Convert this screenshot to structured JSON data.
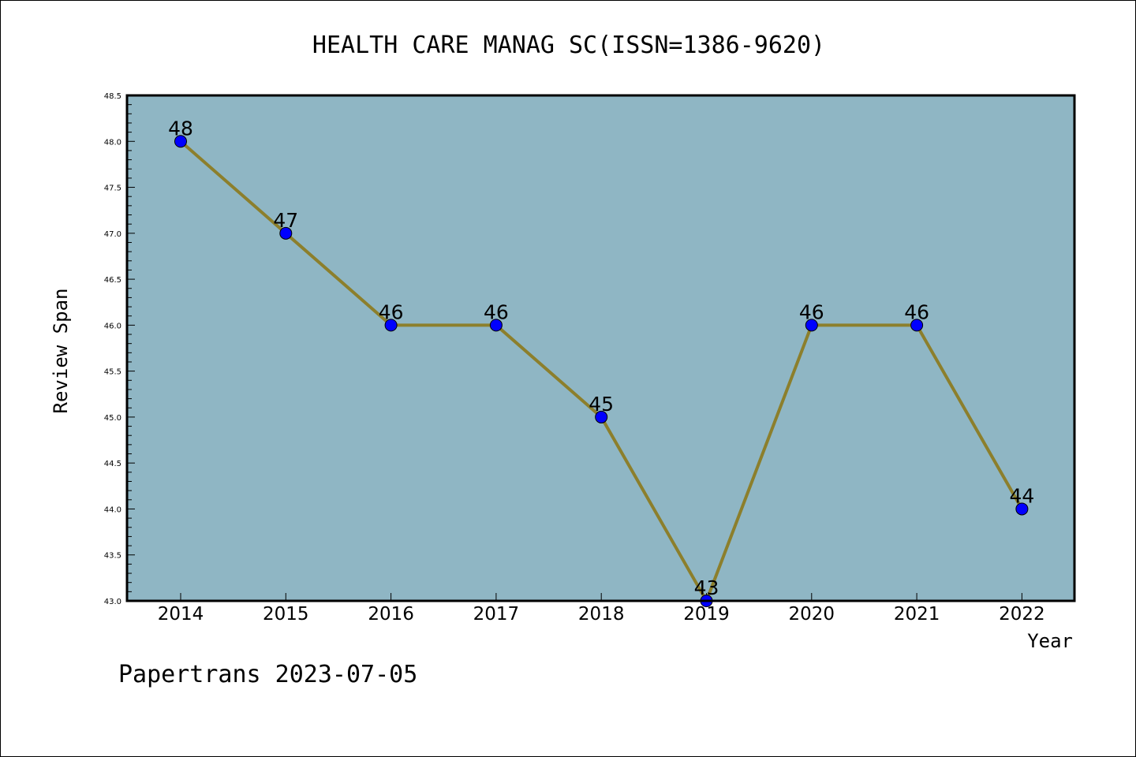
{
  "chart_data": {
    "type": "line",
    "title": "HEALTH CARE MANAG SC(ISSN=1386-9620)",
    "xlabel": "Year",
    "ylabel": "Review Span",
    "x": [
      "2014",
      "2015",
      "2016",
      "2017",
      "2018",
      "2019",
      "2020",
      "2021",
      "2022"
    ],
    "series": [
      {
        "values": [
          48,
          47,
          46,
          46,
          45,
          43,
          46,
          46,
          44
        ]
      }
    ],
    "data_labels": [
      "48",
      "47",
      "46",
      "46",
      "45",
      "43",
      "46",
      "46",
      "44"
    ],
    "ylim": [
      43.0,
      48.5
    ],
    "yticks": [
      "43.0",
      "43.5",
      "44.0",
      "44.5",
      "45.0",
      "45.5",
      "46.0",
      "46.5",
      "47.0",
      "47.5",
      "48.0",
      "48.5"
    ],
    "grid": false,
    "legend": "none",
    "colors": {
      "plot_background": "#8fb6c4",
      "line": "#8c7f2c",
      "marker": "#0000ff"
    }
  },
  "footer": "Papertrans 2023-07-05"
}
